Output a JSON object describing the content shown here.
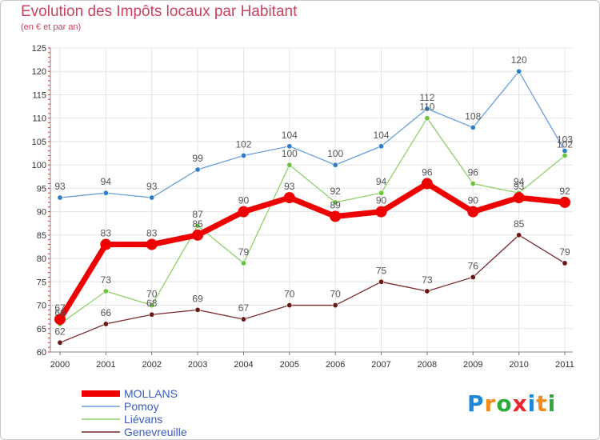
{
  "header": {
    "title": "Evolution des Impôts locaux par Habitant",
    "subtitle": "(en € et par an)"
  },
  "logo": {
    "text": "Proxiti",
    "letters": [
      {
        "ch": "P",
        "color": "#1e88d8"
      },
      {
        "ch": "r",
        "color": "#f08c1e"
      },
      {
        "ch": "o",
        "color": "#2caa3c"
      },
      {
        "ch": "x",
        "color": "#e8282c"
      },
      {
        "ch": "i",
        "color": "#1e88d8"
      },
      {
        "ch": "t",
        "color": "#f08c1e"
      },
      {
        "ch": "i",
        "color": "#2caa3c"
      }
    ]
  },
  "chart_data": {
    "type": "line",
    "title": "Evolution des Impôts locaux par Habitant",
    "subtitle": "(en € et par an)",
    "xlabel": "",
    "ylabel": "",
    "x": [
      2000,
      2001,
      2002,
      2003,
      2004,
      2005,
      2006,
      2007,
      2008,
      2009,
      2010,
      2011
    ],
    "ylim": [
      60,
      125
    ],
    "yticks": [
      60,
      65,
      70,
      75,
      80,
      85,
      90,
      95,
      100,
      105,
      110,
      115,
      120,
      125
    ],
    "grid": true,
    "legend_position": "bottom-left",
    "series": [
      {
        "name": "MOLLANS",
        "values": [
          67,
          83,
          83,
          85,
          90,
          93,
          89,
          90,
          96,
          90,
          93,
          92
        ],
        "color": "#ee0000",
        "emphasis": true
      },
      {
        "name": "Pomoy",
        "values": [
          93,
          94,
          93,
          99,
          102,
          104,
          100,
          104,
          112,
          108,
          120,
          103
        ],
        "color": "#6a9fd8",
        "marker_color": "#2f7ec7"
      },
      {
        "name": "Liévans",
        "values": [
          66,
          73,
          70,
          87,
          79,
          100,
          92,
          94,
          110,
          96,
          94,
          102
        ],
        "color": "#8fd06a",
        "marker_color": "#6cc43c"
      },
      {
        "name": "Genevreuille",
        "values": [
          62,
          66,
          68,
          69,
          67,
          70,
          70,
          75,
          73,
          76,
          85,
          79
        ],
        "color": "#7a2a2a",
        "marker_color": "#6b1818"
      }
    ]
  }
}
